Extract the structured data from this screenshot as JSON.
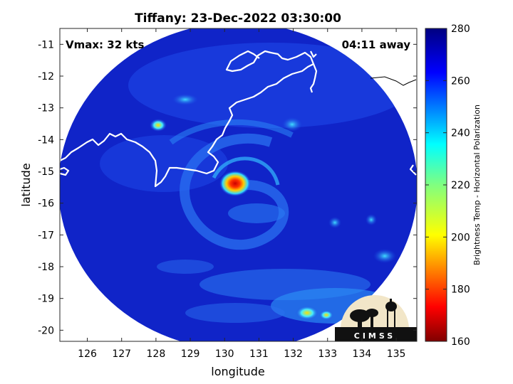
{
  "title": "Tiffany: 23-Dec-2022 03:30:00",
  "vmax_label": "Vmax: 32 kts",
  "away_label": "04:11 away",
  "xlabel": "longitude",
  "ylabel": "latitude",
  "x_ticks": [
    "126",
    "127",
    "128",
    "129",
    "130",
    "131",
    "132",
    "133",
    "134",
    "135"
  ],
  "y_ticks": [
    "-11",
    "-12",
    "-13",
    "-14",
    "-15",
    "-16",
    "-17",
    "-18",
    "-19",
    "-20"
  ],
  "colorbar": {
    "label": "Brightness Temp - Horizontal Polarization",
    "ticks": [
      "280",
      "260",
      "240",
      "220",
      "200",
      "180",
      "160"
    ],
    "min": 160,
    "max": 280,
    "colormap": "jet"
  },
  "logo_text": "CIMSS",
  "map": {
    "xlim": [
      125.2,
      135.6
    ],
    "ylim": [
      -20.35,
      -10.5
    ],
    "swath_center_lon": 130.3,
    "swath_center_lat": -15.45,
    "storm_center": {
      "lon": 130.3,
      "lat": -15.35,
      "min_tb": 175
    },
    "background_tb": 268,
    "coastline_color": "#ffffff"
  }
}
